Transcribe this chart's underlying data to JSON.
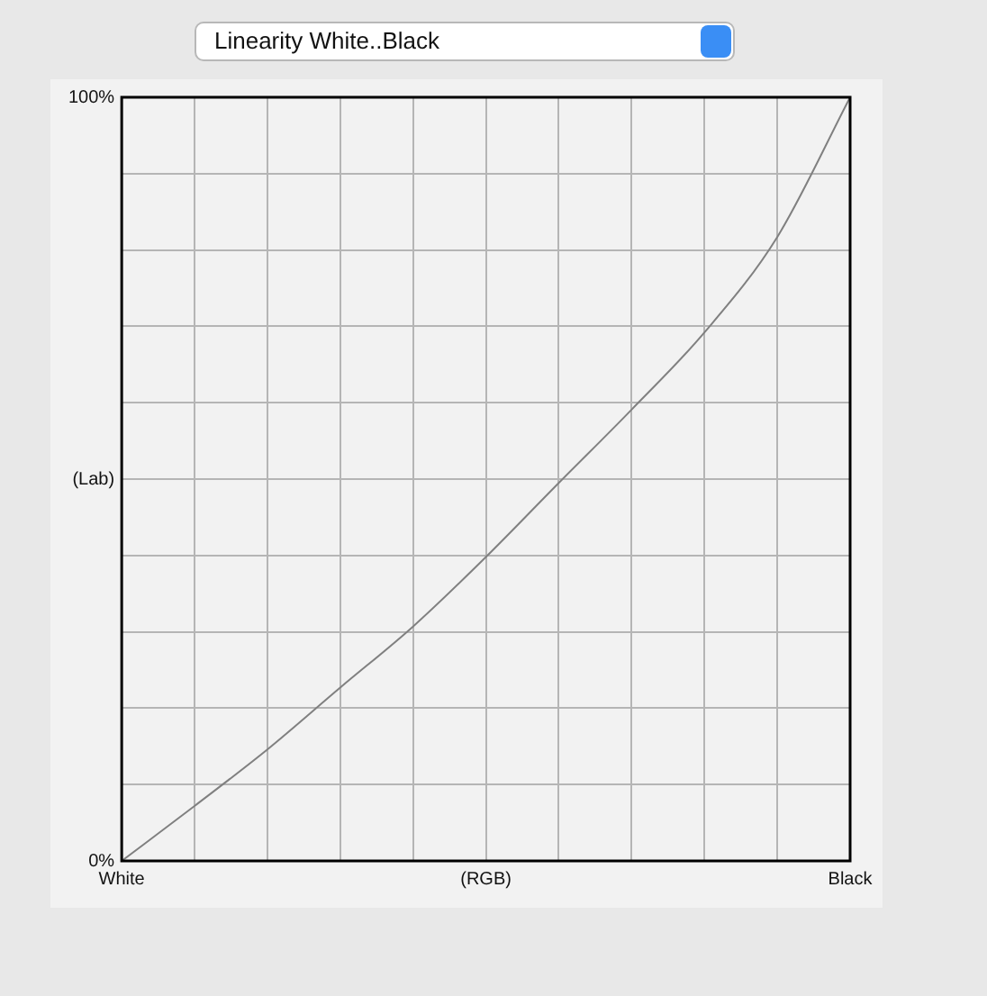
{
  "chart_data": {
    "type": "line",
    "title": "Linearity White..Black",
    "categories": [
      "White",
      null,
      null,
      null,
      null,
      "(RGB)",
      null,
      null,
      null,
      null,
      "Black"
    ],
    "series": [
      {
        "color": "#808080",
        "values": [
          0,
          7.2,
          14.6,
          22.7,
          30.7,
          39.8,
          49.5,
          59.1,
          69.2,
          81.7,
          100
        ]
      }
    ],
    "ylim": [
      0,
      100
    ],
    "yticks": [
      {
        "value": 0,
        "label": "0%"
      },
      {
        "value": 10,
        "label": null
      },
      {
        "value": 20,
        "label": null
      },
      {
        "value": 30,
        "label": null
      },
      {
        "value": 40,
        "label": null
      },
      {
        "value": 50,
        "label": "(Lab)"
      },
      {
        "value": 60,
        "label": null
      },
      {
        "value": 70,
        "label": null
      },
      {
        "value": 80,
        "label": null
      },
      {
        "value": 90,
        "label": null
      },
      {
        "value": 100,
        "label": "100%"
      }
    ],
    "grid": true,
    "marker": "none",
    "line_style": "solid",
    "legend": false
  }
}
